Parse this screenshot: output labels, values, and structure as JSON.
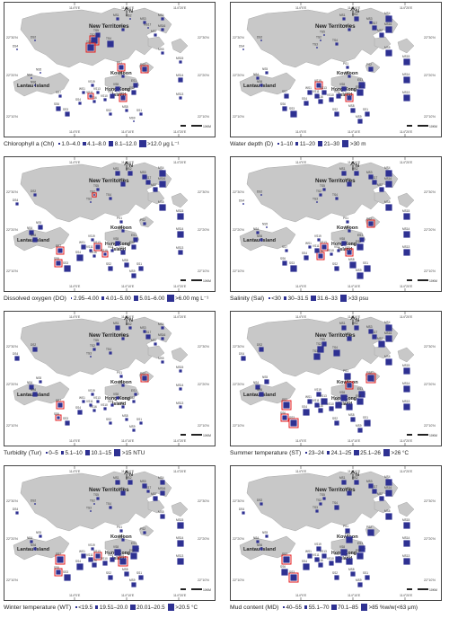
{
  "map_labels": {
    "new_territories": "New Territories",
    "kowloon": "Kowloon",
    "hong_kong_island_1": "Hong Kong",
    "hong_kong_island_2": "Island",
    "lantau": "Lantau Island",
    "north": "N",
    "lon_1": "114°0'E",
    "lon_2": "114°10'E",
    "lon_3": "114°20'E",
    "lat_1": "22°30'N",
    "lat_2": "22°20'N",
    "lat_3": "22°10'N",
    "scale": "10KM"
  },
  "station_labels": [
    "DS2",
    "DS4",
    "NS5",
    "NS4",
    "NS6",
    "TS2",
    "TS3",
    "TS4",
    "TS5",
    "MS1",
    "MS2",
    "MS4",
    "MS16",
    "MS17",
    "MS5",
    "MS15",
    "MS14",
    "MS13",
    "MS9",
    "MS8",
    "MS3",
    "MS6",
    "MS7",
    "PS1",
    "PS2",
    "PS3",
    "VS19",
    "VS13",
    "VS8",
    "VS3",
    "VS10",
    "VS5",
    "VS16",
    "VS11",
    "ES1",
    "ES2",
    "SS1",
    "SS2",
    "SS3",
    "SS4",
    "SS6",
    "SS7",
    "WS1"
  ],
  "panels": [
    {
      "title": "Chlorophyll a (Chl)",
      "legend": [
        {
          "label": "1.0–4.0"
        },
        {
          "label": "4.1–8.0"
        },
        {
          "label": "8.1–12.0"
        },
        {
          "label": ">12.0 μg L⁻¹"
        }
      ],
      "colors": {
        "symbol": "#2e3192",
        "highlight": "#e31a1c",
        "land": "#c8c8c8"
      }
    },
    {
      "title": "Water depth (D)",
      "legend": [
        {
          "label": "1–10"
        },
        {
          "label": "11–20"
        },
        {
          "label": "21–30"
        },
        {
          "label": ">30 m"
        }
      ]
    },
    {
      "title": "Dissolved oxygen (DO)",
      "legend": [
        {
          "label": "2.95–4.00"
        },
        {
          "label": "4.01–5.00"
        },
        {
          "label": "5.01–6.00"
        },
        {
          "label": ">6.00 mg L⁻¹"
        }
      ]
    },
    {
      "title": "Salinity (Sal)",
      "legend": [
        {
          "label": "<30"
        },
        {
          "label": "30–31.5"
        },
        {
          "label": "31.6–33"
        },
        {
          "label": ">33 psu"
        }
      ]
    },
    {
      "title": "Turbidity (Tur)",
      "legend": [
        {
          "label": "0–5"
        },
        {
          "label": "5.1–10"
        },
        {
          "label": "10.1–15"
        },
        {
          "label": ">15 NTU"
        }
      ]
    },
    {
      "title": "Summer temperature (ST)",
      "legend": [
        {
          "label": "23–24"
        },
        {
          "label": "24.1–25"
        },
        {
          "label": "25.1–26"
        },
        {
          "label": ">26 °C"
        }
      ]
    },
    {
      "title": "Winter temperature (WT)",
      "legend": [
        {
          "label": "<19.5"
        },
        {
          "label": "19.51–20.0"
        },
        {
          "label": "20.01–20.5"
        },
        {
          "label": ">20.5 °C"
        }
      ]
    },
    {
      "title": "Mud content (MD)",
      "legend": [
        {
          "label": "40–55"
        },
        {
          "label": "55.1–70"
        },
        {
          "label": "70.1–85"
        },
        {
          "label": ">85 %w/w(<63 μm)"
        }
      ]
    }
  ]
}
